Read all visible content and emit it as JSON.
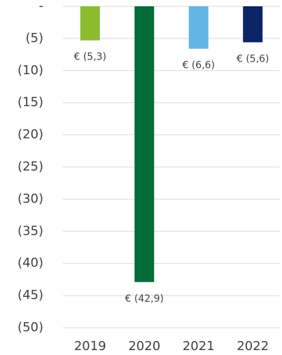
{
  "chart_data": {
    "type": "bar",
    "categories": [
      "2019",
      "2020",
      "2021",
      "2022"
    ],
    "values": [
      -5.3,
      -42.9,
      -6.6,
      -5.6
    ],
    "value_labels": [
      "€ (5,3)",
      "€ (42,9)",
      "€ (6,6)",
      "€ (5,6)"
    ],
    "colors": [
      "#8abd2e",
      "#046c3a",
      "#63b6e6",
      "#0b2468"
    ],
    "ylim": [
      -50,
      0
    ],
    "yticks": [
      {
        "value": 0,
        "label": "-"
      },
      {
        "value": -5,
        "label": "(5)"
      },
      {
        "value": -10,
        "label": "(10)"
      },
      {
        "value": -15,
        "label": "(15)"
      },
      {
        "value": -20,
        "label": "(20)"
      },
      {
        "value": -25,
        "label": "(25)"
      },
      {
        "value": -30,
        "label": "(30)"
      },
      {
        "value": -35,
        "label": "(35)"
      },
      {
        "value": -40,
        "label": "(40)"
      },
      {
        "value": -45,
        "label": "(45)"
      },
      {
        "value": -50,
        "label": "(50)"
      }
    ],
    "grid": true
  }
}
